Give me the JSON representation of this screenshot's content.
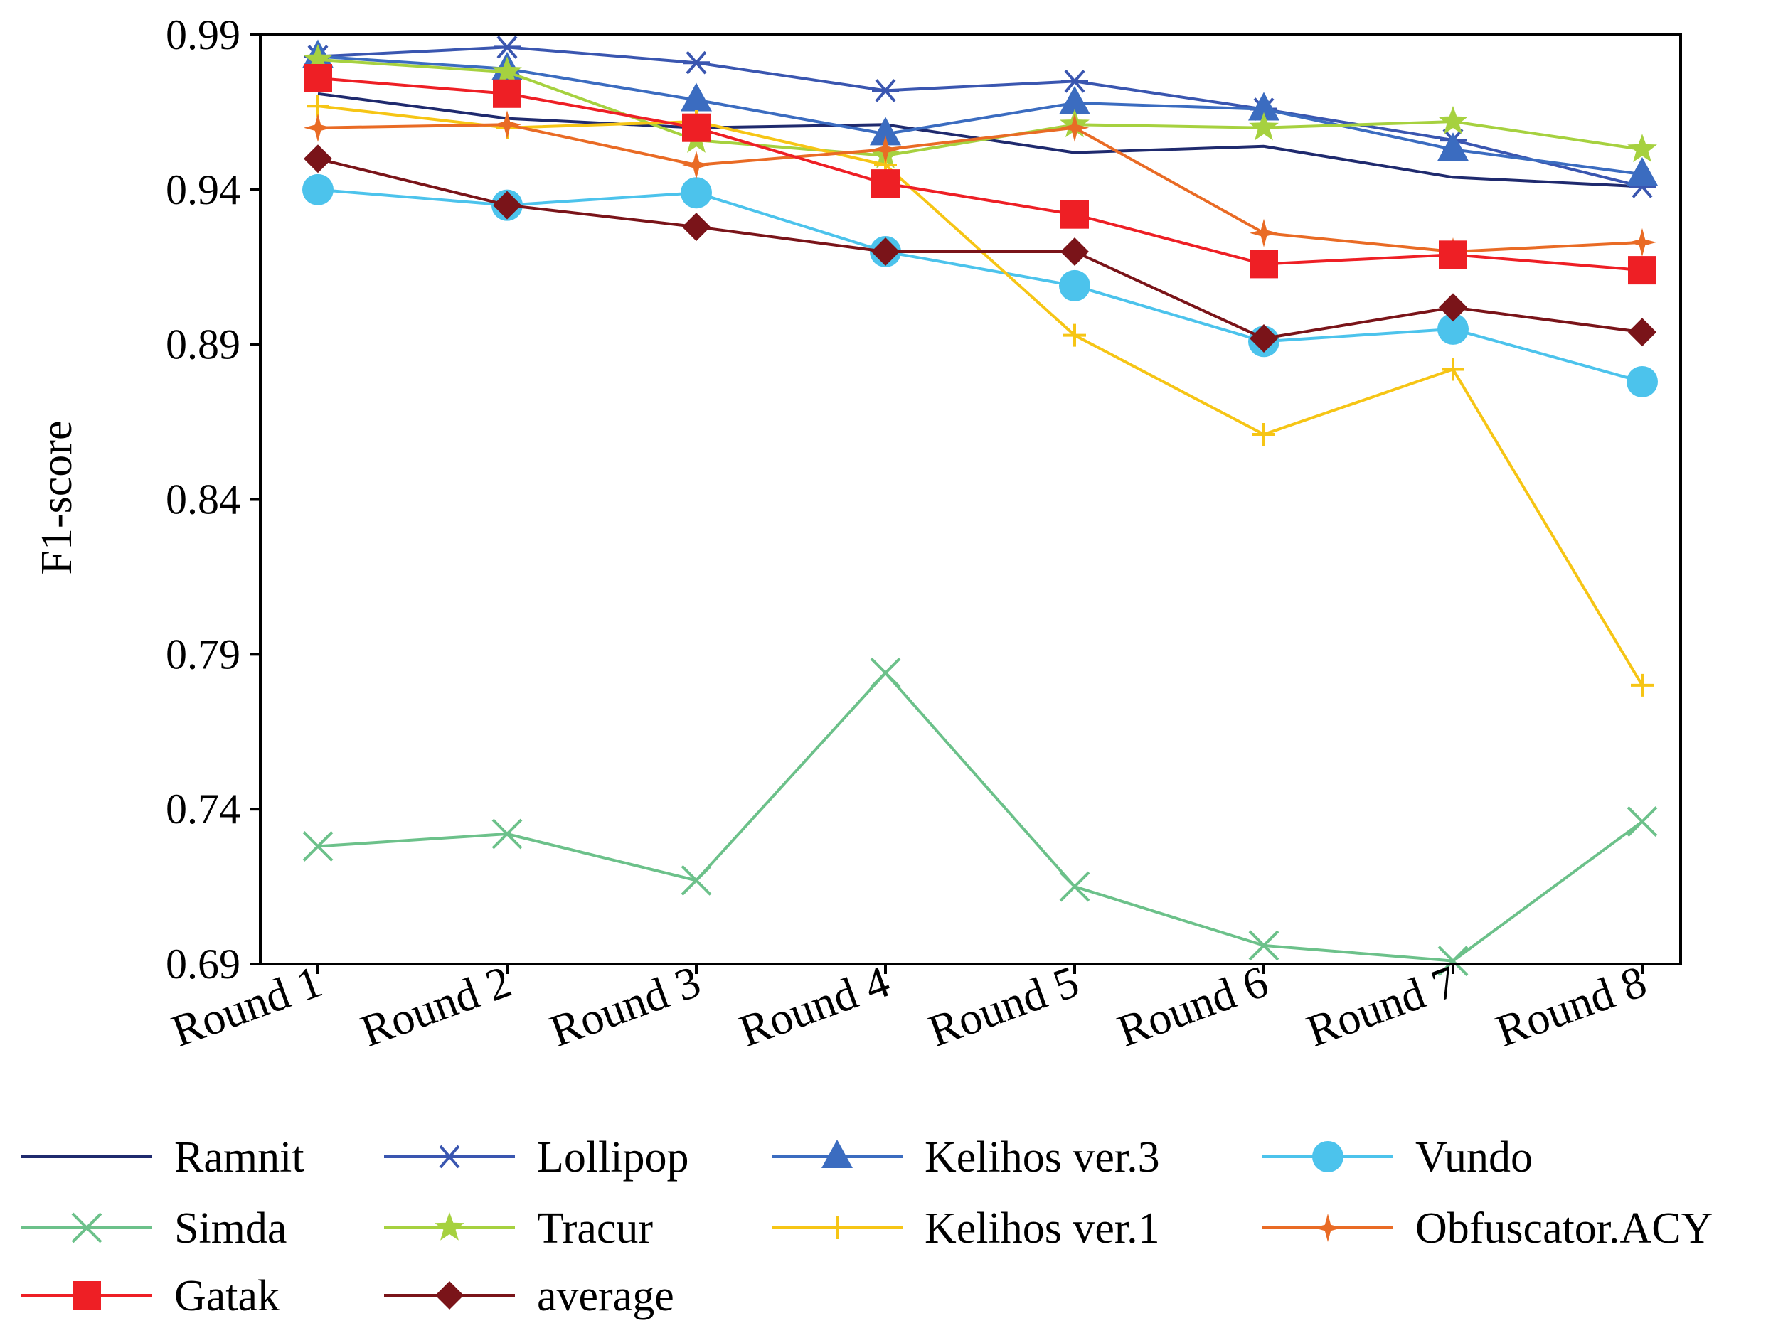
{
  "chart_data": {
    "type": "line",
    "title": "",
    "xlabel": "",
    "ylabel": "F1-score",
    "categories": [
      "Round 1",
      "Round 2",
      "Round 3",
      "Round 4",
      "Round 5",
      "Round 6",
      "Round 7",
      "Round 8"
    ],
    "ylim": [
      0.69,
      0.99
    ],
    "yticks": [
      "0.69",
      "0.74",
      "0.79",
      "0.84",
      "0.89",
      "0.94",
      "0.99"
    ],
    "grid": false,
    "legend_position": "bottom",
    "series": [
      {
        "name": "Ramnit",
        "color": "#1f2a6e",
        "marker": "none",
        "values": [
          0.971,
          0.963,
          0.96,
          0.961,
          0.952,
          0.954,
          0.944,
          0.941
        ]
      },
      {
        "name": "Lollipop",
        "color": "#3a56b0",
        "marker": "asterisk",
        "values": [
          0.983,
          0.986,
          0.981,
          0.972,
          0.975,
          0.966,
          0.956,
          0.941
        ]
      },
      {
        "name": "Kelihos ver.3",
        "color": "#3b6cc0",
        "marker": "triangle",
        "values": [
          0.983,
          0.979,
          0.969,
          0.958,
          0.968,
          0.966,
          0.953,
          0.945
        ]
      },
      {
        "name": "Vundo",
        "color": "#4cc3ec",
        "marker": "circle",
        "values": [
          0.94,
          0.935,
          0.939,
          0.92,
          0.909,
          0.891,
          0.895,
          0.878
        ]
      },
      {
        "name": "Simda",
        "color": "#6cc18a",
        "marker": "x",
        "values": [
          0.728,
          0.732,
          0.717,
          0.784,
          0.715,
          0.696,
          0.691,
          0.736
        ]
      },
      {
        "name": "Tracur",
        "color": "#a6d13f",
        "marker": "star",
        "values": [
          0.982,
          0.978,
          0.956,
          0.951,
          0.961,
          0.96,
          0.962,
          0.953
        ]
      },
      {
        "name": "Kelihos ver.1",
        "color": "#f6c515",
        "marker": "plus",
        "values": [
          0.967,
          0.96,
          0.962,
          0.948,
          0.893,
          0.861,
          0.882,
          0.78
        ]
      },
      {
        "name": "Obfuscator.ACY",
        "color": "#e96b25",
        "marker": "star4",
        "values": [
          0.96,
          0.961,
          0.948,
          0.953,
          0.96,
          0.926,
          0.92,
          0.923
        ]
      },
      {
        "name": "Gatak",
        "color": "#ee1f25",
        "marker": "square",
        "values": [
          0.976,
          0.971,
          0.96,
          0.942,
          0.932,
          0.916,
          0.919,
          0.914
        ]
      },
      {
        "name": "average",
        "color": "#7a1419",
        "marker": "diamond",
        "values": [
          0.95,
          0.935,
          0.928,
          0.92,
          0.92,
          0.892,
          0.902,
          0.894
        ]
      }
    ]
  }
}
